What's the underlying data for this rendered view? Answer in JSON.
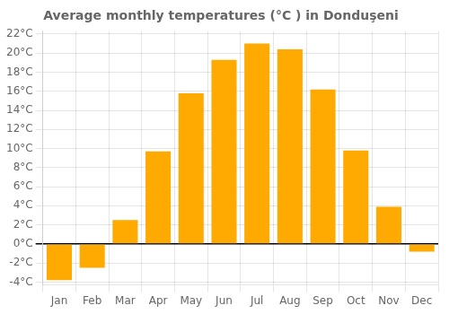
{
  "chart_data": {
    "type": "bar",
    "title": "Average monthly temperatures (°C ) in Donduşeni",
    "categories": [
      "Jan",
      "Feb",
      "Mar",
      "Apr",
      "May",
      "Jun",
      "Jul",
      "Aug",
      "Sep",
      "Oct",
      "Nov",
      "Dec"
    ],
    "values": [
      -3.8,
      -2.5,
      2.5,
      9.7,
      15.8,
      19.3,
      21.0,
      20.4,
      16.2,
      9.8,
      3.9,
      -0.8
    ],
    "color": "#FFAA00",
    "ylim": [
      -4.3,
      22.3
    ],
    "yticks": [
      {
        "value": -4,
        "label": "-4°C"
      },
      {
        "value": -2,
        "label": "-2°C"
      },
      {
        "value": 0,
        "label": "0°C"
      },
      {
        "value": 2,
        "label": "2°C"
      },
      {
        "value": 4,
        "label": "4°C"
      },
      {
        "value": 6,
        "label": "6°C"
      },
      {
        "value": 8,
        "label": "8°C"
      },
      {
        "value": 10,
        "label": "10°C"
      },
      {
        "value": 12,
        "label": "12°C"
      },
      {
        "value": 14,
        "label": "14°C"
      },
      {
        "value": 16,
        "label": "16°C"
      },
      {
        "value": 18,
        "label": "18°C"
      },
      {
        "value": 20,
        "label": "20°C"
      },
      {
        "value": 22,
        "label": "22°C"
      }
    ],
    "grid": true
  }
}
